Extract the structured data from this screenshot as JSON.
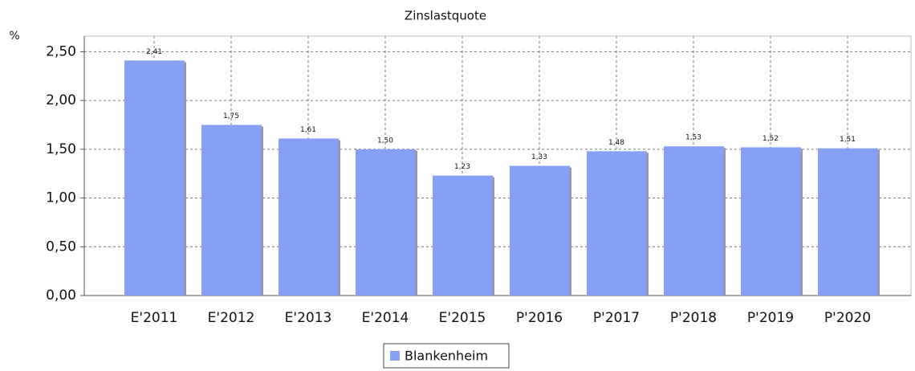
{
  "chart_data": {
    "type": "bar",
    "title": "Zinslastquote",
    "y_axis_label": "%",
    "categories": [
      "E'2011",
      "E'2012",
      "E'2013",
      "E'2014",
      "E'2015",
      "P'2016",
      "P'2017",
      "P'2018",
      "P'2019",
      "P'2020"
    ],
    "series": [
      {
        "name": "Blankenheim",
        "color": "#86a0f6",
        "values": [
          2.41,
          1.75,
          1.61,
          1.5,
          1.23,
          1.33,
          1.48,
          1.53,
          1.52,
          1.51
        ],
        "value_labels": [
          "2,41",
          "1,75",
          "1,61",
          "1,50",
          "1,23",
          "1,33",
          "1,48",
          "1,53",
          "1,52",
          "1,51"
        ]
      }
    ],
    "ylim": [
      0,
      2.66
    ],
    "yticks": [
      {
        "value": 0,
        "label": "0,00"
      },
      {
        "value": 0.5,
        "label": "0,50"
      },
      {
        "value": 1,
        "label": "1,00"
      },
      {
        "value": 1.5,
        "label": "1,50"
      },
      {
        "value": 2,
        "label": "2,00"
      },
      {
        "value": 2.5,
        "label": "2,50"
      }
    ],
    "grid": true
  }
}
